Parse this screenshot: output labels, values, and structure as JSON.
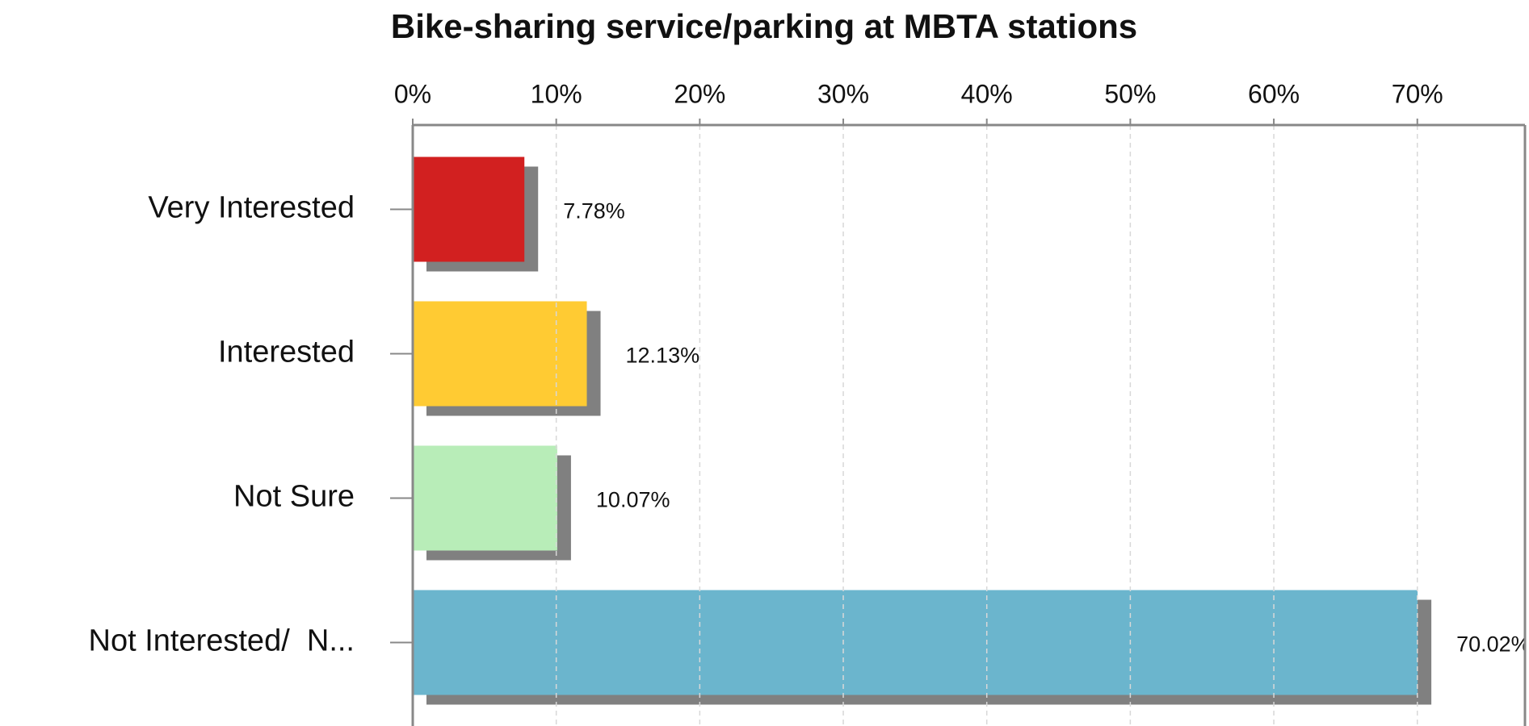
{
  "chart_data": {
    "type": "barh",
    "title": "Bike-sharing service/parking at MBTA stations",
    "categories": [
      "Very Interested",
      "Interested",
      "Not Sure",
      "Not Interested/  N..."
    ],
    "values": [
      7.78,
      12.13,
      10.07,
      70.02
    ],
    "value_labels": [
      "7.78%",
      "12.13%",
      "10.07%",
      "70.02%"
    ],
    "colors": [
      "#d22020",
      "#ffcb33",
      "#b8edb8",
      "#6bb5cd"
    ],
    "xlim": [
      0,
      77.5
    ],
    "xticks": [
      {
        "value": 0,
        "label": "0%"
      },
      {
        "value": 10,
        "label": "10%"
      },
      {
        "value": 20,
        "label": "20%"
      },
      {
        "value": 30,
        "label": "30%"
      },
      {
        "value": 40,
        "label": "40%"
      },
      {
        "value": 50,
        "label": "50%"
      },
      {
        "value": 60,
        "label": "60%"
      },
      {
        "value": 70,
        "label": "70%"
      }
    ],
    "grid": true
  }
}
